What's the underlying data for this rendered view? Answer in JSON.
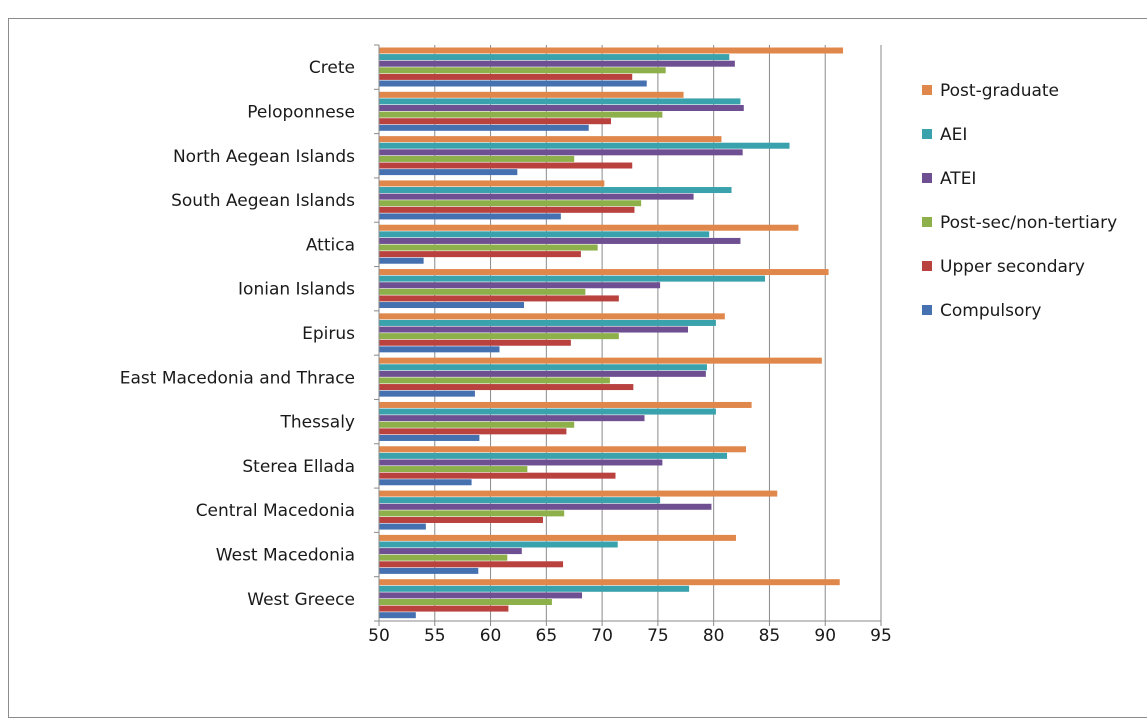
{
  "chart_data": {
    "type": "bar",
    "orientation": "horizontal",
    "categories": [
      "Crete",
      "Peloponnese",
      "North Aegean Islands",
      "South Aegean Islands",
      "Attica",
      "Ionian Islands",
      "Epirus",
      "East Macedonia and Thrace",
      "Thessaly",
      "Sterea Ellada",
      "Central Macedonia",
      "West Macedonia",
      "West Greece"
    ],
    "series": [
      {
        "name": "Post-graduate",
        "color": "#e0884b",
        "values": [
          91.6,
          77.3,
          80.7,
          70.2,
          87.6,
          90.3,
          81.0,
          89.7,
          83.4,
          82.9,
          85.7,
          82.0,
          91.3
        ]
      },
      {
        "name": "AEI",
        "color": "#3aa2ad",
        "values": [
          81.4,
          82.4,
          86.8,
          81.6,
          79.6,
          84.6,
          80.2,
          79.4,
          80.2,
          81.2,
          75.2,
          71.4,
          77.8
        ]
      },
      {
        "name": "ATEI",
        "color": "#6e4f91",
        "values": [
          81.9,
          82.7,
          82.6,
          78.2,
          82.4,
          75.2,
          77.7,
          79.3,
          73.8,
          75.4,
          79.8,
          62.8,
          68.2
        ]
      },
      {
        "name": "Post-sec/non-tertiary",
        "color": "#8db04a",
        "values": [
          75.7,
          75.4,
          67.5,
          73.5,
          69.6,
          68.5,
          71.5,
          70.7,
          67.5,
          63.3,
          66.6,
          61.5,
          65.5
        ]
      },
      {
        "name": "Upper secondary",
        "color": "#b9423f",
        "values": [
          72.7,
          70.8,
          72.7,
          72.9,
          68.1,
          71.5,
          67.2,
          72.8,
          66.8,
          71.2,
          64.7,
          66.5,
          61.6
        ]
      },
      {
        "name": "Compulsory",
        "color": "#4671b0",
        "values": [
          74.0,
          68.8,
          62.4,
          66.3,
          54.0,
          63.0,
          60.8,
          58.6,
          59.0,
          58.3,
          54.2,
          58.9,
          53.3
        ]
      }
    ],
    "xticks": [
      "50",
      "55",
      "60",
      "65",
      "70",
      "75",
      "80",
      "85",
      "90",
      "95"
    ],
    "xlim": [
      50,
      95
    ],
    "title": "",
    "xlabel": "",
    "ylabel": "",
    "grid": "vertical gridlines",
    "legend_position": "right"
  }
}
